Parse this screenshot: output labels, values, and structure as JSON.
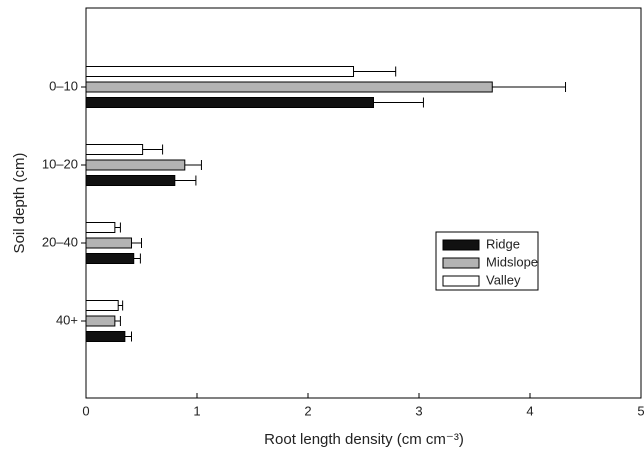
{
  "chart_data": {
    "type": "bar",
    "orientation": "horizontal",
    "xlabel": "Root length density (cm cm⁻³)",
    "ylabel": "Soil depth (cm)",
    "categories": [
      "0–10",
      "10–20",
      "20–40",
      "40+"
    ],
    "series": [
      {
        "name": "Ridge",
        "color": "#111111",
        "values": [
          2.59,
          0.8,
          0.43,
          0.35
        ],
        "errors": [
          0.45,
          0.19,
          0.06,
          0.06
        ]
      },
      {
        "name": "Midslope",
        "color": "#b3b3b3",
        "values": [
          3.66,
          0.89,
          0.41,
          0.26
        ],
        "errors": [
          0.66,
          0.15,
          0.09,
          0.05
        ]
      },
      {
        "name": "Valley",
        "color": "#ffffff",
        "values": [
          2.41,
          0.51,
          0.26,
          0.29
        ],
        "errors": [
          0.38,
          0.18,
          0.05,
          0.04
        ]
      }
    ],
    "xlim": [
      0,
      5
    ],
    "xticks": [
      0,
      1,
      2,
      3,
      4,
      5
    ],
    "legend": "right"
  }
}
